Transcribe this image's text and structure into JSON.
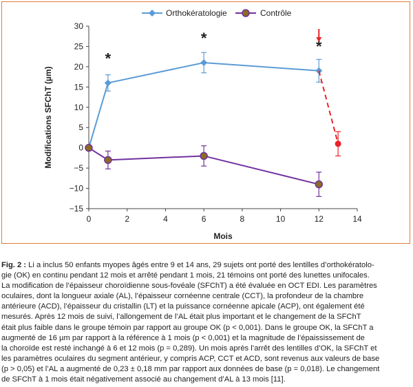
{
  "chart_data": {
    "type": "line",
    "xlabel": "Mois",
    "ylabel": "Modifications SFChT (µm)",
    "xlim": [
      0,
      14
    ],
    "ylim": [
      -15,
      30
    ],
    "xticks": [
      "0",
      "2",
      "4",
      "6",
      "8",
      "10",
      "12",
      "14"
    ],
    "yticks": [
      "−15",
      "−10",
      "−5",
      "0",
      "5",
      "10",
      "15",
      "20",
      "25",
      "30"
    ],
    "legend_position": "top",
    "series": [
      {
        "name": "Orthokératologie",
        "color": "#5b9bd5",
        "marker": "diamond",
        "x": [
          0,
          1,
          6,
          12
        ],
        "y": [
          0,
          16,
          21,
          19
        ],
        "err": [
          0,
          2,
          2.5,
          2.8
        ]
      },
      {
        "name": "Contrôle",
        "color": "#7030a0",
        "marker_fill": "#8a6d1e",
        "marker": "circle",
        "x": [
          0,
          1,
          6,
          12
        ],
        "y": [
          0,
          -3,
          -2,
          -9
        ],
        "err": [
          0,
          2.2,
          2.5,
          3
        ]
      }
    ],
    "after_stop": {
      "color": "#e8232a",
      "line_style": "dashed",
      "x": [
        12,
        13
      ],
      "y": [
        19,
        1
      ],
      "err": [
        0,
        3
      ]
    },
    "annotations": [
      {
        "text": "*",
        "x": 1,
        "y": 16
      },
      {
        "text": "*",
        "x": 6,
        "y": 21
      },
      {
        "text": "*",
        "x": 12,
        "y": 19
      }
    ],
    "stop_arrow": {
      "x": 12,
      "color": "#e8232a"
    }
  },
  "caption": {
    "label": "Fig. 2 :",
    "lines": [
      "Li a inclus 50 enfants myopes âgés entre 9 et 14 ans, 29 sujets ont porté des lentilles d’orthokératolo-",
      "gie (OK) en continu pendant 12 mois et arrêté pendant 1 mois, 21 témoins ont porté des lunettes unifocales.",
      "La modification de l’épaisseur choroïdienne sous-fovéale (SFChT) a été évaluée en OCT EDI. Les paramètres",
      "oculaires, dont la longueur axiale (AL), l’épaisseur cornéenne centrale (CCT), la profondeur de la chambre",
      "antérieure (ACD), l’épaisseur du cristallin (LT) et la puissance cornéenne apicale (ACP), ont également été",
      "mesurés. Après 12 mois de suivi, l’allongement de l’AL était plus important et le changement de la SFChT",
      "était plus faible dans le groupe témoin par rapport au groupe OK (p < 0,001). Dans le groupe OK, la SFChT a",
      "augmenté de 16 µm par rapport à la référence à 1 mois (p < 0,001) et la magnitude de l’épaississement de",
      "la choroïde est resté inchangé à 6 et 12 mois (p = 0,289). Un mois après l’arrêt des lentilles d’OK, la SFChT et",
      "les paramètres oculaires du segment antérieur, y compris ACP, CCT et ACD, sont revenus aux valeurs de base",
      "(p > 0,05) et l’AL a augmenté de 0,23 ± 0,18 mm par rapport aux données de base (p = 0,018). Le changement",
      "de SFChT à 1 mois était négativement associé au changement d’AL à 13 mois [11]."
    ]
  }
}
